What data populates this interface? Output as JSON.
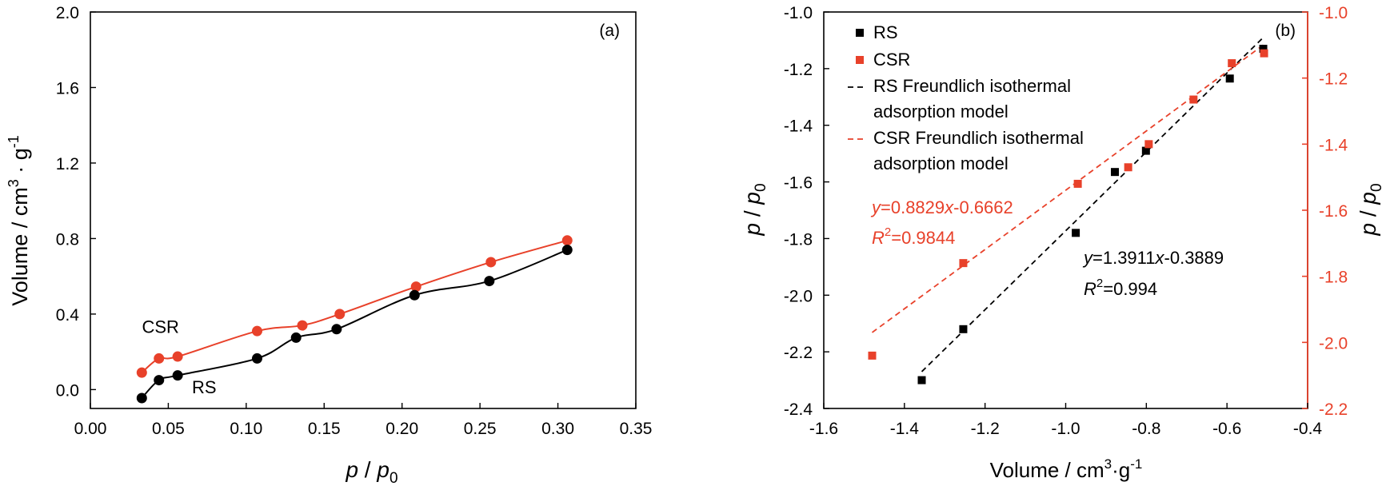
{
  "chart_data": [
    {
      "panel": "(a)",
      "type": "line",
      "xlabel": "p / p0",
      "ylabel": "Volume / cm3 · g-1",
      "xlim": [
        0.0,
        0.35
      ],
      "ylim": [
        -0.1,
        2.0
      ],
      "xticks": [
        "0.00",
        "0.05",
        "0.10",
        "0.15",
        "0.20",
        "0.25",
        "0.30",
        "0.35"
      ],
      "yticks": [
        "0.0",
        "0.4",
        "0.8",
        "1.2",
        "1.6",
        "2.0"
      ],
      "grid": false,
      "series": [
        {
          "name": "CSR",
          "color": "#e8412a",
          "marker": "circle",
          "x": [
            0.033,
            0.044,
            0.056,
            0.107,
            0.136,
            0.16,
            0.209,
            0.257,
            0.306
          ],
          "y": [
            0.09,
            0.165,
            0.175,
            0.31,
            0.34,
            0.4,
            0.545,
            0.675,
            0.79
          ]
        },
        {
          "name": "RS",
          "color": "#000000",
          "marker": "circle",
          "x": [
            0.033,
            0.044,
            0.056,
            0.107,
            0.132,
            0.158,
            0.208,
            0.256,
            0.306
          ],
          "y": [
            -0.045,
            0.05,
            0.075,
            0.165,
            0.275,
            0.32,
            0.5,
            0.575,
            0.74
          ]
        }
      ],
      "annotations": [
        {
          "text": "CSR",
          "x": 0.045,
          "y": 0.3
        },
        {
          "text": "RS",
          "x": 0.073,
          "y": -0.02
        }
      ]
    },
    {
      "panel": "(b)",
      "type": "scatter",
      "xlabel": "Volume / cm3·g-1",
      "ylabel_left": "p / p0",
      "ylabel_right": "p / p0",
      "xlim": [
        -1.6,
        -0.4
      ],
      "ylim_left": [
        -2.4,
        -1.0
      ],
      "ylim_right": [
        -2.2,
        -1.0
      ],
      "xticks": [
        "-1.6",
        "-1.4",
        "-1.2",
        "-1.0",
        "-0.8",
        "-0.6",
        "-0.4"
      ],
      "yticks_left": [
        "-2.4",
        "-2.2",
        "-2.0",
        "-1.8",
        "-1.6",
        "-1.4",
        "-1.2",
        "-1.0"
      ],
      "yticks_right": [
        "-2.2",
        "-2.0",
        "-1.8",
        "-1.6",
        "-1.4",
        "-1.2",
        "-1.0"
      ],
      "grid": false,
      "legend_position": "top-left",
      "series": [
        {
          "name": "RS",
          "color": "#000000",
          "marker": "square",
          "axis": "left",
          "x": [
            -1.357,
            -1.254,
            -0.975,
            -0.878,
            -0.801,
            -0.593,
            -0.51
          ],
          "y": [
            -2.3,
            -2.12,
            -1.78,
            -1.565,
            -1.49,
            -1.235,
            -1.13
          ]
        },
        {
          "name": "CSR",
          "color": "#e8412a",
          "marker": "square",
          "axis": "right",
          "x": [
            -1.48,
            -1.254,
            -0.97,
            -0.845,
            -0.794,
            -0.683,
            -0.588,
            -0.508
          ],
          "y": [
            -2.04,
            -1.76,
            -1.52,
            -1.47,
            -1.4,
            -1.265,
            -1.155,
            -1.125
          ]
        },
        {
          "name": "RS Freundlich isothermal adsorption model",
          "color": "#000000",
          "style": "dashed",
          "axis": "left",
          "x": [
            -1.357,
            -0.51
          ],
          "y": [
            -2.27,
            -1.09
          ]
        },
        {
          "name": "CSR Freundlich isothermal adsorption model",
          "color": "#e8412a",
          "style": "dashed",
          "axis": "right",
          "x": [
            -1.48,
            -0.51
          ],
          "y": [
            -1.97,
            -1.1
          ]
        }
      ],
      "equations": [
        {
          "id": "csr",
          "color": "#e8412a",
          "eq": "y=0.8829x-0.6662",
          "r2": "R2=0.9844"
        },
        {
          "id": "rs",
          "color": "#000000",
          "eq": "y=1.3911x-0.3889",
          "r2": "R2=0.994"
        }
      ]
    }
  ]
}
